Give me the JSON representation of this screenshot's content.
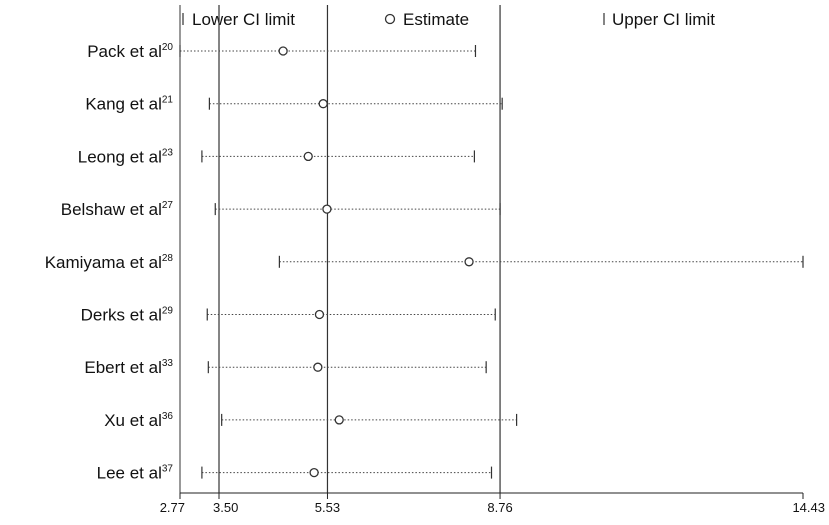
{
  "chart_data": {
    "type": "scatter",
    "title": "",
    "xlabel": "",
    "ylabel": "",
    "legend": {
      "placement": "top",
      "entries": [
        "Lower CI limit",
        "Estimate",
        "Upper CI limit"
      ]
    },
    "x_ticks": [
      "2.77",
      "3.50",
      "5.53",
      "8.76",
      "14.43"
    ],
    "xlim": [
      2.77,
      14.43
    ],
    "reference_lines": [
      3.5,
      5.53,
      8.76
    ],
    "studies": [
      {
        "name": "Pack et al",
        "ref": "20",
        "lower": 2.77,
        "estimate": 4.7,
        "upper": 8.3
      },
      {
        "name": "Kang et al",
        "ref": "21",
        "lower": 3.32,
        "estimate": 5.45,
        "upper": 8.8
      },
      {
        "name": "Leong et al",
        "ref": "23",
        "lower": 3.18,
        "estimate": 5.17,
        "upper": 8.28
      },
      {
        "name": "Belshaw et al",
        "ref": "27",
        "lower": 3.43,
        "estimate": 5.52,
        "upper": 8.76
      },
      {
        "name": "Kamiyama et al",
        "ref": "28",
        "lower": 4.63,
        "estimate": 8.18,
        "upper": 14.43
      },
      {
        "name": "Derks et al",
        "ref": "29",
        "lower": 3.28,
        "estimate": 5.38,
        "upper": 8.67
      },
      {
        "name": "Ebert et al",
        "ref": "33",
        "lower": 3.3,
        "estimate": 5.35,
        "upper": 8.5
      },
      {
        "name": "Xu et al",
        "ref": "36",
        "lower": 3.55,
        "estimate": 5.75,
        "upper": 9.07
      },
      {
        "name": "Lee et al",
        "ref": "37",
        "lower": 3.18,
        "estimate": 5.28,
        "upper": 8.6
      }
    ]
  }
}
